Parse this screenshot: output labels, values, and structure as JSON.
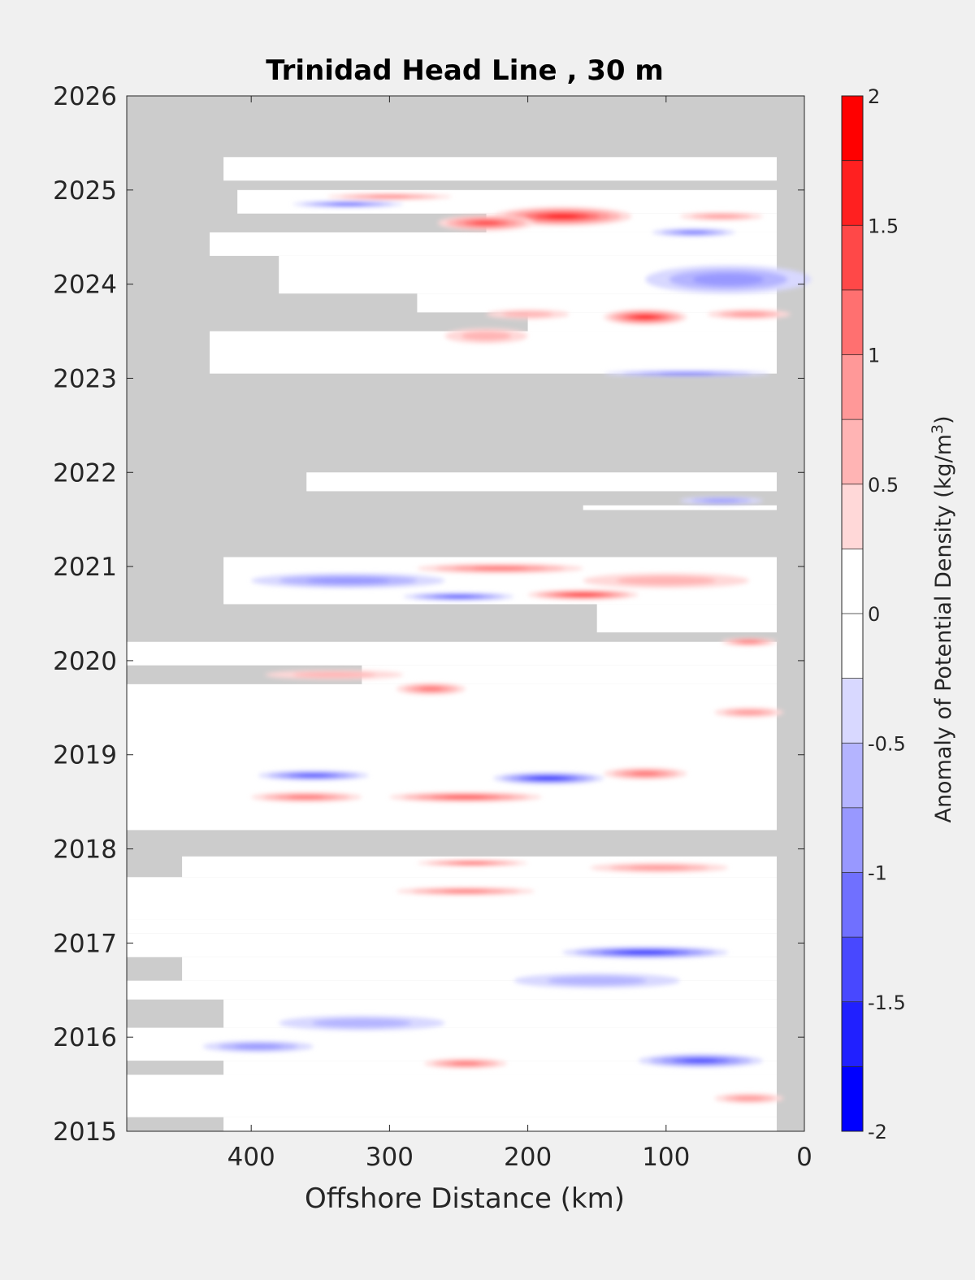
{
  "chart_data": {
    "type": "heatmap",
    "title": "Trinidad Head Line , 30 m",
    "xlabel": "Offshore Distance (km)",
    "ylabel": "",
    "xlim": [
      490,
      0
    ],
    "x_reversed": true,
    "ylim": [
      2015,
      2026
    ],
    "x_ticks": [
      "400",
      "300",
      "200",
      "100",
      "0"
    ],
    "y_ticks": [
      "2015",
      "2016",
      "2017",
      "2018",
      "2019",
      "2020",
      "2021",
      "2022",
      "2023",
      "2024",
      "2025",
      "2026"
    ],
    "colorbar": {
      "label_prefix": "Anomaly of Potential Density (kg/m",
      "label_superscript": "3",
      "label_suffix": ")",
      "range": [
        -2,
        2
      ],
      "levels": [
        -2,
        -1.75,
        -1.5,
        -1.25,
        -1,
        -0.75,
        -0.5,
        -0.25,
        0,
        0.25,
        0.5,
        0.75,
        1,
        1.25,
        1.5,
        1.75,
        2
      ],
      "ticks": [
        "2",
        "1.5",
        "1",
        "0.5",
        "0",
        "-0.5",
        "-1",
        "-1.5",
        "-2"
      ],
      "colors": [
        "#0000ff",
        "#2020ff",
        "#4848ff",
        "#7070ff",
        "#9898ff",
        "#b4b4ff",
        "#d8d8ff",
        "#ffffff",
        "#ffffff",
        "#ffd8d8",
        "#ffb4b4",
        "#ff9898",
        "#ff7070",
        "#ff4848",
        "#ff2020",
        "#ff0000"
      ]
    },
    "missing_color": "#cccccc",
    "features": [
      {
        "x": 175,
        "y": 2024.72,
        "value": 1.6,
        "rx": 50,
        "ry": 0.1
      },
      {
        "x": 230,
        "y": 2024.65,
        "value": 1.2,
        "rx": 35,
        "ry": 0.08
      },
      {
        "x": 300,
        "y": 2024.93,
        "value": 1.0,
        "rx": 45,
        "ry": 0.03
      },
      {
        "x": 330,
        "y": 2024.85,
        "value": -1.3,
        "rx": 40,
        "ry": 0.03
      },
      {
        "x": 80,
        "y": 2024.55,
        "value": -1.0,
        "rx": 30,
        "ry": 0.04
      },
      {
        "x": 60,
        "y": 2024.72,
        "value": 0.8,
        "rx": 30,
        "ry": 0.04
      },
      {
        "x": 55,
        "y": 2024.05,
        "value": -0.7,
        "rx": 60,
        "ry": 0.15
      },
      {
        "x": 115,
        "y": 2023.65,
        "value": 1.5,
        "rx": 30,
        "ry": 0.08
      },
      {
        "x": 40,
        "y": 2023.68,
        "value": 0.7,
        "rx": 30,
        "ry": 0.05
      },
      {
        "x": 200,
        "y": 2023.68,
        "value": 0.6,
        "rx": 30,
        "ry": 0.05
      },
      {
        "x": 230,
        "y": 2023.45,
        "value": 0.4,
        "rx": 30,
        "ry": 0.08
      },
      {
        "x": 85,
        "y": 2023.05,
        "value": -1.0,
        "rx": 60,
        "ry": 0.03
      },
      {
        "x": 60,
        "y": 2021.7,
        "value": -0.8,
        "rx": 30,
        "ry": 0.04
      },
      {
        "x": 160,
        "y": 2020.7,
        "value": 1.4,
        "rx": 40,
        "ry": 0.05
      },
      {
        "x": 220,
        "y": 2020.98,
        "value": 1.0,
        "rx": 60,
        "ry": 0.05
      },
      {
        "x": 100,
        "y": 2020.85,
        "value": 0.5,
        "rx": 60,
        "ry": 0.08
      },
      {
        "x": 250,
        "y": 2020.68,
        "value": -1.3,
        "rx": 40,
        "ry": 0.04
      },
      {
        "x": 330,
        "y": 2020.85,
        "value": -0.8,
        "rx": 70,
        "ry": 0.08
      },
      {
        "x": 270,
        "y": 2019.7,
        "value": 1.1,
        "rx": 25,
        "ry": 0.06
      },
      {
        "x": 340,
        "y": 2019.85,
        "value": 0.5,
        "rx": 50,
        "ry": 0.05
      },
      {
        "x": 40,
        "y": 2019.45,
        "value": 0.7,
        "rx": 25,
        "ry": 0.05
      },
      {
        "x": 40,
        "y": 2020.2,
        "value": 1.0,
        "rx": 20,
        "ry": 0.04
      },
      {
        "x": 185,
        "y": 2018.75,
        "value": -1.6,
        "rx": 40,
        "ry": 0.06
      },
      {
        "x": 355,
        "y": 2018.78,
        "value": -1.3,
        "rx": 40,
        "ry": 0.05
      },
      {
        "x": 245,
        "y": 2018.55,
        "value": 1.2,
        "rx": 55,
        "ry": 0.05
      },
      {
        "x": 360,
        "y": 2018.55,
        "value": 1.0,
        "rx": 40,
        "ry": 0.05
      },
      {
        "x": 115,
        "y": 2018.8,
        "value": 0.9,
        "rx": 30,
        "ry": 0.06
      },
      {
        "x": 245,
        "y": 2017.55,
        "value": 1.1,
        "rx": 50,
        "ry": 0.04
      },
      {
        "x": 240,
        "y": 2017.85,
        "value": 1.3,
        "rx": 40,
        "ry": 0.03
      },
      {
        "x": 105,
        "y": 2017.8,
        "value": 0.8,
        "rx": 50,
        "ry": 0.05
      },
      {
        "x": 115,
        "y": 2016.9,
        "value": -1.4,
        "rx": 60,
        "ry": 0.06
      },
      {
        "x": 75,
        "y": 2015.75,
        "value": -1.3,
        "rx": 45,
        "ry": 0.07
      },
      {
        "x": 245,
        "y": 2015.72,
        "value": 0.9,
        "rx": 30,
        "ry": 0.05
      },
      {
        "x": 150,
        "y": 2016.6,
        "value": -0.6,
        "rx": 60,
        "ry": 0.08
      },
      {
        "x": 395,
        "y": 2015.9,
        "value": -0.7,
        "rx": 40,
        "ry": 0.06
      },
      {
        "x": 40,
        "y": 2015.35,
        "value": 0.8,
        "rx": 25,
        "ry": 0.05
      },
      {
        "x": 320,
        "y": 2016.15,
        "value": -0.5,
        "rx": 60,
        "ry": 0.08
      }
    ]
  }
}
